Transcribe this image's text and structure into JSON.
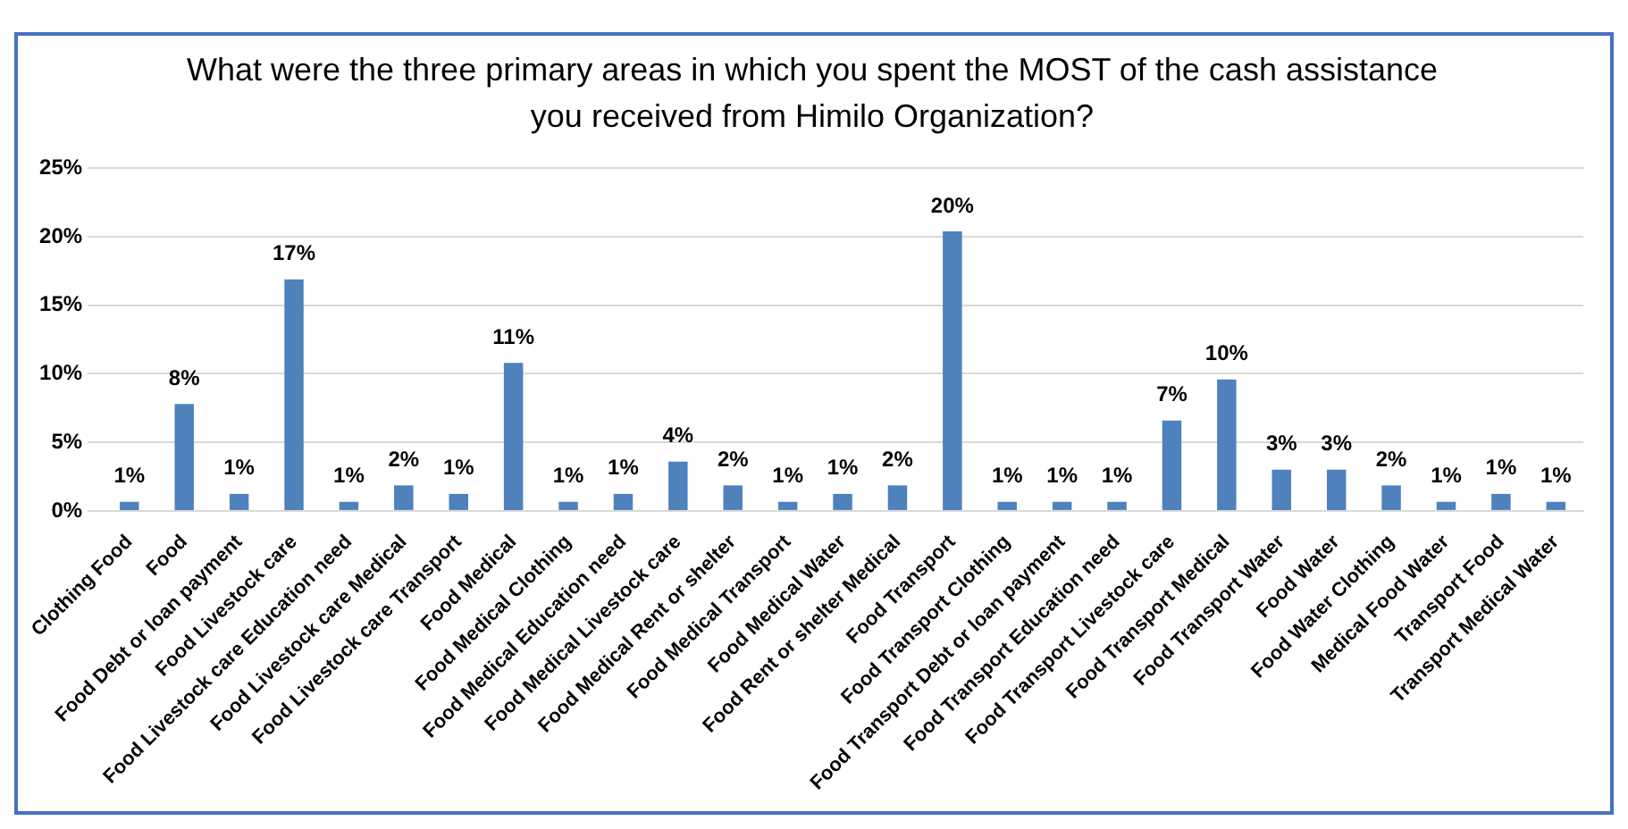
{
  "chart_data": {
    "type": "bar",
    "title": "What were the three primary areas in which you spent the MOST of the cash assistance you received from Himilo Organization?",
    "categories": [
      "Clothing Food",
      "Food",
      "Food Debt or loan payment",
      "Food Livestock care",
      "Food Livestock care Education need",
      "Food Livestock care Medical",
      "Food Livestock care Transport",
      "Food Medical",
      "Food Medical Clothing",
      "Food Medical Education need",
      "Food Medical Livestock care",
      "Food Medical Rent or shelter",
      "Food Medical Transport",
      "Food Medical Water",
      "Food Rent or shelter Medical",
      "Food Transport",
      "Food Transport Clothing",
      "Food Transport Debt or loan payment",
      "Food Transport Education need",
      "Food Transport Livestock care",
      "Food Transport Medical",
      "Food Transport Water",
      "Food Water",
      "Food Water Clothing",
      "Medical Food Water",
      "Transport Food",
      "Transport Medical Water"
    ],
    "values": [
      0.66,
      7.8,
      1.24,
      16.9,
      0.66,
      1.86,
      1.24,
      10.8,
      0.66,
      1.24,
      3.6,
      1.86,
      0.66,
      1.24,
      1.86,
      20.4,
      0.66,
      0.66,
      0.66,
      6.6,
      9.6,
      3.0,
      3.0,
      1.86,
      0.66,
      1.24,
      0.66
    ],
    "value_labels": [
      "1%",
      "8%",
      "1%",
      "17%",
      "1%",
      "2%",
      "1%",
      "11%",
      "1%",
      "1%",
      "4%",
      "2%",
      "1%",
      "1%",
      "2%",
      "20%",
      "1%",
      "1%",
      "1%",
      "7%",
      "10%",
      "3%",
      "3%",
      "2%",
      "1%",
      "1%",
      "1%"
    ],
    "color": "#4f81bd",
    "ylim": [
      0,
      25
    ],
    "yticks": [
      {
        "value": 0,
        "label": "0%"
      },
      {
        "value": 5,
        "label": "5%"
      },
      {
        "value": 10,
        "label": "10%"
      },
      {
        "value": 15,
        "label": "15%"
      },
      {
        "value": 20,
        "label": "20%"
      },
      {
        "value": 25,
        "label": "25%"
      }
    ],
    "grid": "y",
    "legend": false
  }
}
